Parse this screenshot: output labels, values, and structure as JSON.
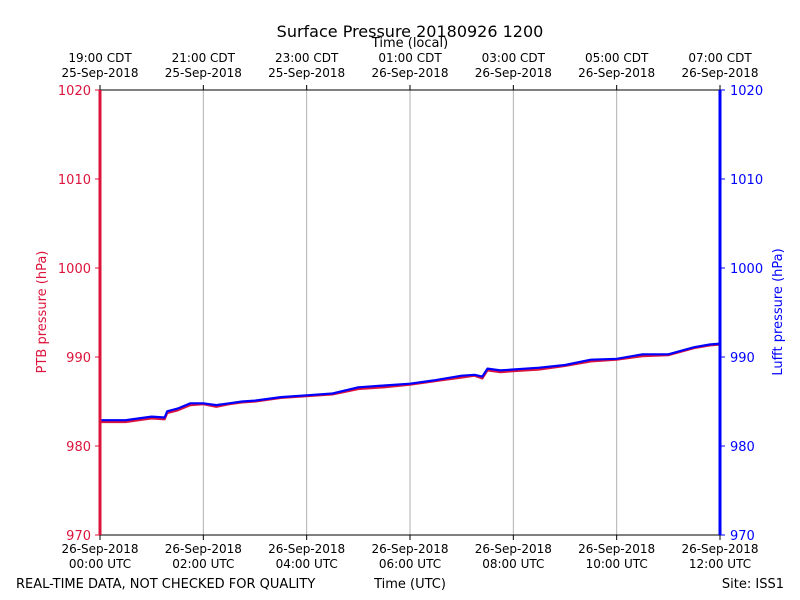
{
  "chart_data": {
    "type": "line",
    "title": "Surface Pressure 20180926 1200",
    "top_xlabel": "Time (local)",
    "xlabel": "Time (UTC)",
    "ylabel_left": "PTB pressure (hPa)",
    "ylabel_right": "Lufft pressure (hPa)",
    "ylim": [
      970,
      1020
    ],
    "yticks": [
      970,
      980,
      990,
      1000,
      1010,
      1020
    ],
    "xlim_hours": [
      0,
      12
    ],
    "grid": "vertical",
    "x_ticks_bottom": [
      {
        "date": "26-Sep-2018",
        "time": "00:00 UTC"
      },
      {
        "date": "26-Sep-2018",
        "time": "02:00 UTC"
      },
      {
        "date": "26-Sep-2018",
        "time": "04:00 UTC"
      },
      {
        "date": "26-Sep-2018",
        "time": "06:00 UTC"
      },
      {
        "date": "26-Sep-2018",
        "time": "08:00 UTC"
      },
      {
        "date": "26-Sep-2018",
        "time": "10:00 UTC"
      },
      {
        "date": "26-Sep-2018",
        "time": "12:00 UTC"
      }
    ],
    "x_ticks_top": [
      {
        "time": "19:00 CDT",
        "date": "25-Sep-2018"
      },
      {
        "time": "21:00 CDT",
        "date": "25-Sep-2018"
      },
      {
        "time": "23:00 CDT",
        "date": "25-Sep-2018"
      },
      {
        "time": "01:00 CDT",
        "date": "26-Sep-2018"
      },
      {
        "time": "03:00 CDT",
        "date": "26-Sep-2018"
      },
      {
        "time": "05:00 CDT",
        "date": "26-Sep-2018"
      },
      {
        "time": "07:00 CDT",
        "date": "26-Sep-2018"
      }
    ],
    "series": [
      {
        "name": "PTB pressure",
        "axis": "left",
        "color": "#dc143c",
        "x": [
          0,
          0.5,
          0.75,
          1.0,
          1.25,
          1.3,
          1.5,
          1.75,
          2.0,
          2.25,
          2.5,
          2.75,
          3.0,
          3.5,
          4.0,
          4.5,
          5.0,
          5.5,
          6.0,
          6.5,
          7.0,
          7.25,
          7.4,
          7.5,
          7.75,
          8.0,
          8.5,
          9.0,
          9.5,
          10.0,
          10.5,
          11.0,
          11.5,
          11.8,
          12.0
        ],
        "values": [
          982.7,
          982.7,
          982.9,
          983.1,
          983.0,
          983.7,
          984.0,
          984.6,
          984.7,
          984.4,
          984.7,
          984.9,
          985.0,
          985.4,
          985.6,
          985.8,
          986.4,
          986.6,
          986.9,
          987.3,
          987.7,
          987.9,
          987.6,
          988.5,
          988.3,
          988.4,
          988.6,
          989.0,
          989.5,
          989.7,
          990.1,
          990.2,
          991.0,
          991.3,
          991.4
        ]
      },
      {
        "name": "Lufft pressure",
        "axis": "right",
        "color": "#0000ff",
        "x": [
          0,
          0.5,
          0.75,
          1.0,
          1.25,
          1.3,
          1.5,
          1.75,
          2.0,
          2.25,
          2.5,
          2.75,
          3.0,
          3.5,
          4.0,
          4.5,
          5.0,
          5.5,
          6.0,
          6.5,
          7.0,
          7.25,
          7.4,
          7.5,
          7.75,
          8.0,
          8.5,
          9.0,
          9.5,
          10.0,
          10.5,
          11.0,
          11.5,
          11.8,
          12.0
        ],
        "values": [
          982.9,
          982.9,
          983.1,
          983.3,
          983.2,
          983.9,
          984.2,
          984.8,
          984.8,
          984.6,
          984.8,
          985.0,
          985.1,
          985.5,
          985.7,
          985.9,
          986.6,
          986.8,
          987.0,
          987.4,
          987.9,
          988.0,
          987.8,
          988.7,
          988.5,
          988.6,
          988.8,
          989.1,
          989.7,
          989.8,
          990.3,
          990.3,
          991.1,
          991.4,
          991.5
        ]
      }
    ],
    "colors": {
      "left_axis": "#dc143c",
      "right_axis": "#0000ff",
      "grid": "#b0b0b0"
    }
  },
  "footer": {
    "left_note": "REAL-TIME DATA, NOT CHECKED FOR QUALITY",
    "right_note": "Site: ISS1"
  }
}
